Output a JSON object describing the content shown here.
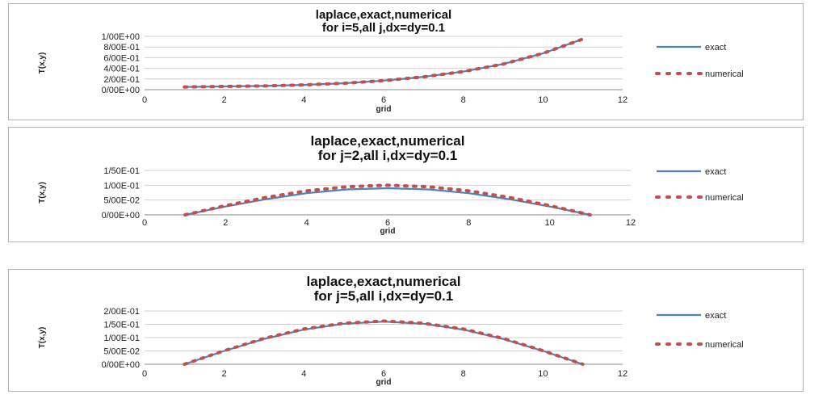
{
  "chart_data": [
    {
      "type": "line",
      "title": "laplace,exact,numerical",
      "subtitle": "for i=5,all j,dx=dy=0.1",
      "xlabel": "grid",
      "ylabel": "T(x,y)",
      "xlim": [
        0,
        12
      ],
      "xticks": [
        0,
        2,
        4,
        6,
        8,
        10,
        12
      ],
      "xtick_labels": [
        "0",
        "2",
        "4",
        "6",
        "8",
        "10",
        "12"
      ],
      "ylim": [
        0,
        1.0
      ],
      "yticks": [
        0,
        0.2,
        0.4,
        0.6,
        0.8,
        1.0
      ],
      "ytick_labels": [
        "0/00E+00",
        "2/00E-01",
        "4/00E-01",
        "6/00E-01",
        "8/00E-01",
        "1/00E+00"
      ],
      "grid": "horizontal",
      "legend": "right",
      "x": [
        1,
        2,
        3,
        4,
        5,
        6,
        7,
        8,
        9,
        10,
        11
      ],
      "series": [
        {
          "name": "exact",
          "style": "solid",
          "color": "#4f81bd",
          "values": [
            0.05,
            0.06,
            0.07,
            0.09,
            0.12,
            0.17,
            0.24,
            0.34,
            0.48,
            0.68,
            0.95
          ]
        },
        {
          "name": "numerical",
          "style": "dotted",
          "color": "#c0504d",
          "values": [
            0.05,
            0.06,
            0.07,
            0.09,
            0.12,
            0.17,
            0.24,
            0.34,
            0.48,
            0.68,
            0.95
          ]
        }
      ]
    },
    {
      "type": "line",
      "title": "laplace,exact,numerical",
      "subtitle": "for j=2,all i,dx=dy=0.1",
      "xlabel": "grid",
      "ylabel": "T(x,y)",
      "xlim": [
        0,
        12
      ],
      "xticks": [
        0,
        2,
        4,
        6,
        8,
        10,
        12
      ],
      "xtick_labels": [
        "0",
        "2",
        "4",
        "6",
        "8",
        "10",
        "12"
      ],
      "ylim": [
        0,
        0.15
      ],
      "yticks": [
        0,
        0.05,
        0.1,
        0.15
      ],
      "ytick_labels": [
        "0/00E+00",
        "5/00E-02",
        "1/00E-01",
        "1/50E-01"
      ],
      "grid": "horizontal",
      "legend": "right",
      "x": [
        1,
        2,
        3,
        4,
        5,
        6,
        7,
        8,
        9,
        10,
        11
      ],
      "series": [
        {
          "name": "exact",
          "style": "solid",
          "color": "#4f81bd",
          "values": [
            0.0,
            0.028,
            0.053,
            0.073,
            0.086,
            0.09,
            0.086,
            0.073,
            0.053,
            0.028,
            0.0
          ]
        },
        {
          "name": "numerical",
          "style": "dotted",
          "color": "#c0504d",
          "values": [
            0.0,
            0.031,
            0.059,
            0.081,
            0.095,
            0.1,
            0.095,
            0.081,
            0.059,
            0.031,
            0.0
          ]
        }
      ]
    },
    {
      "type": "line",
      "title": "laplace,exact,numerical",
      "subtitle": "for j=5,all i,dx=dy=0.1",
      "xlabel": "grid",
      "ylabel": "T(x,y)",
      "xlim": [
        0,
        12
      ],
      "xticks": [
        0,
        2,
        4,
        6,
        8,
        10,
        12
      ],
      "xtick_labels": [
        "0",
        "2",
        "4",
        "6",
        "8",
        "10",
        "12"
      ],
      "ylim": [
        0,
        0.2
      ],
      "yticks": [
        0,
        0.05,
        0.1,
        0.15,
        0.2
      ],
      "ytick_labels": [
        "0/00E+00",
        "5/00E-02",
        "1/00E-01",
        "1/50E-01",
        "2/00E-01"
      ],
      "grid": "horizontal",
      "legend": "right",
      "x": [
        1,
        2,
        3,
        4,
        5,
        6,
        7,
        8,
        9,
        10,
        11
      ],
      "series": [
        {
          "name": "exact",
          "style": "solid",
          "color": "#4f81bd",
          "values": [
            0.0,
            0.05,
            0.095,
            0.13,
            0.152,
            0.16,
            0.152,
            0.13,
            0.095,
            0.05,
            0.0
          ]
        },
        {
          "name": "numerical",
          "style": "dotted",
          "color": "#c0504d",
          "values": [
            0.0,
            0.051,
            0.097,
            0.132,
            0.154,
            0.162,
            0.154,
            0.132,
            0.097,
            0.051,
            0.0
          ]
        }
      ]
    }
  ]
}
